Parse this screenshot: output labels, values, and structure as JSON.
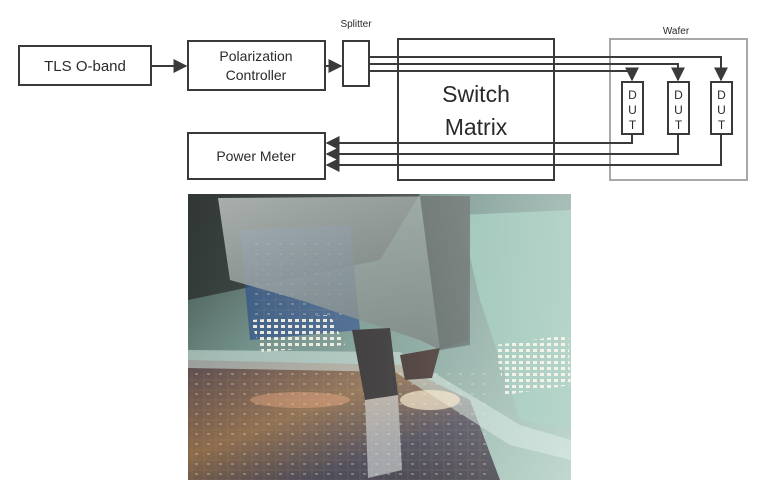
{
  "diagram": {
    "nodes": {
      "tls": "TLS O-band",
      "polarization_line1": "Polarization",
      "polarization_line2": "Controller",
      "splitter": "Splitter",
      "switch_line1": "Switch",
      "switch_line2": "Matrix",
      "power_meter": "Power Meter",
      "wafer": "Wafer"
    },
    "dut_letters": [
      "D",
      "U",
      "T"
    ],
    "dut_count": 3
  },
  "photo": {
    "subject": "probe-station-wafer-photo"
  },
  "colors": {
    "box_stroke": "#3a3a3a",
    "wafer_stroke": "#a8a8a8",
    "photo_teal": "#6f9e92"
  }
}
